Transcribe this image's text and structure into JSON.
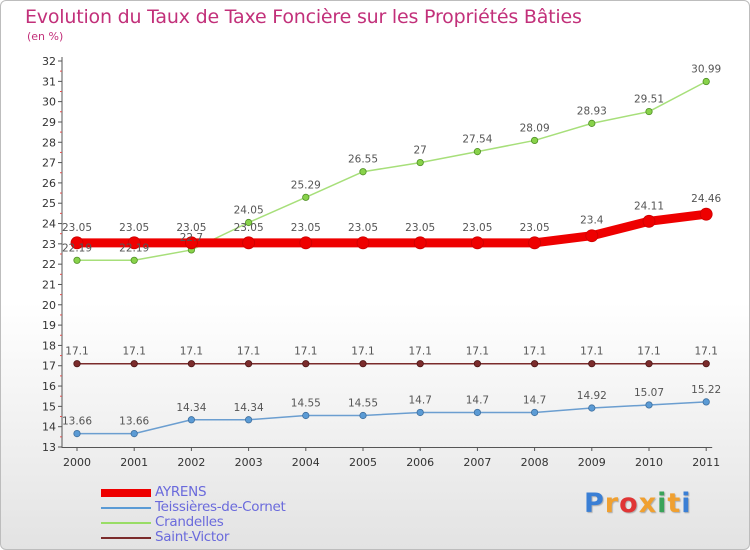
{
  "title": "Evolution du Taux de Taxe Foncière sur les Propriétés Bâties",
  "unit_label": "(en %)",
  "logo": {
    "text": "Proxiti",
    "letters": [
      "P",
      "r",
      "o",
      "x",
      "i",
      "t",
      "i"
    ],
    "colors": [
      "#3a7fd5",
      "#f0a030",
      "#e03535",
      "#f0a030",
      "#3aa35a",
      "#f0a030",
      "#3a7fd5"
    ]
  },
  "chart_data": {
    "type": "line",
    "title": "Evolution du Taux de Taxe Foncière sur les Propriétés Bâties",
    "ylabel": "(en %)",
    "xlabel": "",
    "x": [
      "2000",
      "2001",
      "2002",
      "2003",
      "2004",
      "2005",
      "2006",
      "2007",
      "2008",
      "2009",
      "2010",
      "2011"
    ],
    "ylim": [
      13,
      32
    ],
    "yticks": [
      "13",
      "14",
      "15",
      "16",
      "17",
      "18",
      "19",
      "20",
      "21",
      "22",
      "23",
      "24",
      "25",
      "26",
      "27",
      "28",
      "29",
      "30",
      "31",
      "32"
    ],
    "grid": false,
    "series": [
      {
        "name": "AYRENS",
        "color": "#ee0000",
        "values": [
          23.05,
          23.05,
          23.05,
          23.05,
          23.05,
          23.05,
          23.05,
          23.05,
          23.05,
          23.4,
          24.11,
          24.46
        ],
        "labels": [
          "23.05",
          "23.05",
          "23.05",
          "23.05",
          "23.05",
          "23.05",
          "23.05",
          "23.05",
          "23.05",
          "23.4",
          "24.11",
          "24.46"
        ]
      },
      {
        "name": "Teissières-de-Cornet",
        "color": "#5b9bd5",
        "values": [
          13.66,
          13.66,
          14.34,
          14.34,
          14.55,
          14.55,
          14.7,
          14.7,
          14.7,
          14.92,
          15.07,
          15.22
        ],
        "labels": [
          "13.66",
          "13.66",
          "14.34",
          "14.34",
          "14.55",
          "14.55",
          "14.7",
          "14.7",
          "14.7",
          "14.92",
          "15.07",
          "15.22"
        ]
      },
      {
        "name": "Crandelles",
        "color": "#99dd66",
        "values": [
          22.19,
          22.19,
          22.7,
          24.05,
          25.29,
          26.55,
          27,
          27.54,
          28.09,
          28.93,
          29.51,
          30.99
        ],
        "labels": [
          "22.19",
          "22.19",
          "22.7",
          "24.05",
          "25.29",
          "26.55",
          "27",
          "27.54",
          "28.09",
          "28.93",
          "29.51",
          "30.99"
        ]
      },
      {
        "name": "Saint-Victor",
        "color": "#7b2c2c",
        "values": [
          17.1,
          17.1,
          17.1,
          17.1,
          17.1,
          17.1,
          17.1,
          17.1,
          17.1,
          17.1,
          17.1,
          17.1
        ],
        "labels": [
          "17.1",
          "17.1",
          "17.1",
          "17.1",
          "17.1",
          "17.1",
          "17.1",
          "17.1",
          "17.1",
          "17.1",
          "17.1",
          "17.1"
        ]
      }
    ],
    "legend": "bottom-left"
  }
}
